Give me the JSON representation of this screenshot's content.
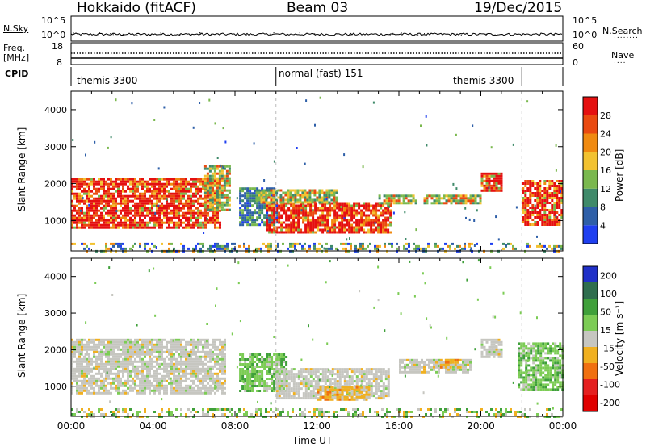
{
  "header": {
    "station": "Hokkaido (fitACF)",
    "beam": "Beam 03",
    "date": "19/Dec/2015"
  },
  "left_labels": {
    "nsky": "N.Sky",
    "freq": "Freq.",
    "freq_unit": "[MHz]",
    "cpid": "CPID"
  },
  "right_labels": {
    "nsearch": "N.Search",
    "nave": "Nave"
  },
  "noise_ticks": {
    "top": "10^5",
    "bottom": "10^0"
  },
  "freq_ticks": {
    "left_top": "18",
    "left_bottom": "8",
    "right_top": "60",
    "right_bottom": "0"
  },
  "cpid_segments": [
    {
      "label": "themis 3300",
      "start_hour": 0,
      "end_hour": 10
    },
    {
      "label": "normal (fast) 151",
      "start_hour": 10,
      "end_hour": 22
    },
    {
      "label": "themis 3300",
      "start_hour": 22,
      "end_hour": 24
    }
  ],
  "chart_data": [
    {
      "type": "heatmap",
      "panel": "power",
      "ylabel": "Slant Range [km]",
      "ylim": [
        180,
        4500
      ],
      "yticks": [
        "1000",
        "2000",
        "3000",
        "4000"
      ],
      "xlim": [
        0,
        24
      ],
      "colorbar_label": "Power [dB]",
      "colorbar_ticks": [
        "4",
        "8",
        "12",
        "16",
        "20",
        "24",
        "28"
      ],
      "colorbar_colors": [
        "#1f3ff0",
        "#2e5fa8",
        "#3f8a6a",
        "#7ab84e",
        "#f2c230",
        "#f08a10",
        "#ea4a10",
        "#e51010"
      ],
      "echo_regions": [
        {
          "t0": 0.0,
          "t1": 7.3,
          "r0": 820,
          "r1": 2150,
          "level": "high"
        },
        {
          "t0": 6.5,
          "t1": 7.8,
          "r0": 1300,
          "r1": 2500,
          "level": "mid"
        },
        {
          "t0": 8.2,
          "t1": 10.0,
          "r0": 900,
          "r1": 1900,
          "level": "low"
        },
        {
          "t0": 9.5,
          "t1": 15.6,
          "r0": 650,
          "r1": 1500,
          "level": "high"
        },
        {
          "t0": 9.0,
          "t1": 13.0,
          "r0": 1500,
          "r1": 1850,
          "level": "mid"
        },
        {
          "t0": 15.0,
          "t1": 16.8,
          "r0": 1500,
          "r1": 1700,
          "level": "mid"
        },
        {
          "t0": 17.2,
          "t1": 20.0,
          "r0": 1500,
          "r1": 1700,
          "level": "mid"
        },
        {
          "t0": 20.0,
          "t1": 21.0,
          "r0": 1800,
          "r1": 2300,
          "level": "high"
        },
        {
          "t0": 22.0,
          "t1": 24.0,
          "r0": 900,
          "r1": 2100,
          "level": "high"
        },
        {
          "t0": 0.0,
          "t1": 24.0,
          "r0": 200,
          "r1": 400,
          "level": "ground"
        }
      ]
    },
    {
      "type": "heatmap",
      "panel": "velocity",
      "ylabel": "Slant Range [km]",
      "ylim": [
        180,
        4500
      ],
      "yticks": [
        "1000",
        "2000",
        "3000",
        "4000"
      ],
      "xlim": [
        0,
        24
      ],
      "xlabel": "Time UT",
      "xticks": [
        "00:00",
        "04:00",
        "08:00",
        "12:00",
        "16:00",
        "20:00",
        "00:00"
      ],
      "colorbar_label": "Velocity [m s⁻¹]",
      "colorbar_ticks": [
        "200",
        "100",
        "50",
        "15",
        "-15",
        "-50",
        "-100",
        "-200"
      ],
      "colorbar_colors": [
        "#2030c8",
        "#2f6e4e",
        "#3fa03a",
        "#7ccc55",
        "#c6c6c0",
        "#f0b020",
        "#f07010",
        "#e52020",
        "#e00000"
      ],
      "echo_regions": [
        {
          "t0": 0.0,
          "t1": 7.5,
          "r0": 820,
          "r1": 2300,
          "level": "grey"
        },
        {
          "t0": 8.2,
          "t1": 10.5,
          "r0": 900,
          "r1": 1900,
          "level": "green"
        },
        {
          "t0": 10.0,
          "t1": 15.5,
          "r0": 650,
          "r1": 1500,
          "level": "grey"
        },
        {
          "t0": 12.0,
          "t1": 14.5,
          "r0": 650,
          "r1": 1000,
          "level": "orange"
        },
        {
          "t0": 16.0,
          "t1": 19.5,
          "r0": 1400,
          "r1": 1750,
          "level": "grey"
        },
        {
          "t0": 18.0,
          "t1": 19.0,
          "r0": 1500,
          "r1": 1750,
          "level": "orange"
        },
        {
          "t0": 20.0,
          "t1": 21.0,
          "r0": 1800,
          "r1": 2300,
          "level": "grey"
        },
        {
          "t0": 21.8,
          "t1": 24.0,
          "r0": 900,
          "r1": 2200,
          "level": "green"
        },
        {
          "t0": 0.0,
          "t1": 24.0,
          "r0": 200,
          "r1": 400,
          "level": "ground"
        }
      ]
    }
  ]
}
